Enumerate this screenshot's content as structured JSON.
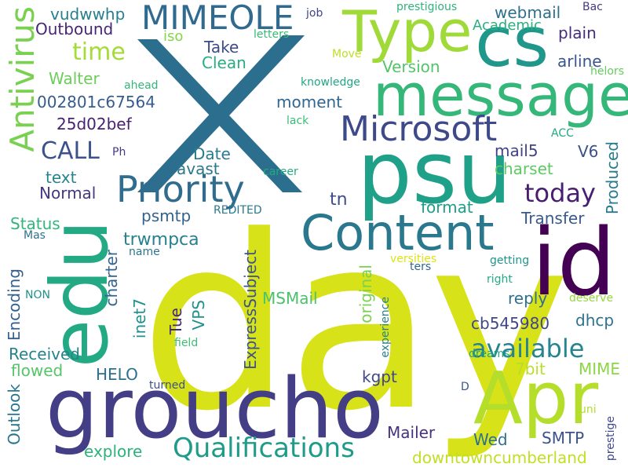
{
  "words": [
    {
      "text": "day",
      "color": "#d8e219"
    },
    {
      "text": "X",
      "color": "#2c6e8e"
    },
    {
      "text": "psu",
      "color": "#1fa088"
    },
    {
      "text": "id",
      "color": "#440154"
    },
    {
      "text": "groucho",
      "color": "#433e85"
    },
    {
      "text": "Apr",
      "color": "#b5de2b"
    },
    {
      "text": "edu",
      "color": "#23a983"
    },
    {
      "text": "cs",
      "color": "#1f988b"
    },
    {
      "text": "message",
      "color": "#35b779"
    },
    {
      "text": "Content",
      "color": "#2a788e"
    },
    {
      "text": "Type",
      "color": "#a0da39"
    },
    {
      "text": "MIMEOLE",
      "color": "#306a8e"
    },
    {
      "text": "Microsoft",
      "color": "#3e4989"
    },
    {
      "text": "Priority",
      "color": "#2f6c8e"
    },
    {
      "text": "Antivirus",
      "color": "#7ad151"
    },
    {
      "text": "Qualifications",
      "color": "#1e9c89"
    },
    {
      "text": "today",
      "color": "#481f70"
    },
    {
      "text": "available",
      "color": "#25848e"
    },
    {
      "text": "CALL",
      "color": "#3b528b"
    },
    {
      "text": "time",
      "color": "#a5db36"
    },
    {
      "text": "Type_small",
      "color": "#a0da39"
    },
    {
      "text": "vudwwhp",
      "color": "#277f8e"
    },
    {
      "text": "Outbound",
      "color": "#482575"
    },
    {
      "text": "webmail",
      "color": "#2d708e"
    },
    {
      "text": "plain",
      "color": "#472c7a"
    },
    {
      "text": "arline",
      "color": "#39568c"
    },
    {
      "text": "Version",
      "color": "#52c569"
    },
    {
      "text": "Walter",
      "color": "#6ccd5a"
    },
    {
      "text": "002801c67564",
      "color": "#365c8d"
    },
    {
      "text": "moment",
      "color": "#31668e"
    },
    {
      "text": "25d02bef",
      "color": "#482173"
    },
    {
      "text": "Take",
      "color": "#3e4a89"
    },
    {
      "text": "Clean",
      "color": "#27ad81"
    },
    {
      "text": "iso",
      "color": "#86d549"
    },
    {
      "text": "Academic",
      "color": "#2ab07f"
    },
    {
      "text": "prestigious",
      "color": "#2eb37c"
    },
    {
      "text": "job",
      "color": "#404688"
    },
    {
      "text": "Bac",
      "color": "#443983"
    },
    {
      "text": "letters",
      "color": "#3aba76"
    },
    {
      "text": "Move",
      "color": "#bddf26"
    },
    {
      "text": "helors",
      "color": "#65cb5e"
    },
    {
      "text": "knowledge",
      "color": "#22a785"
    },
    {
      "text": "ahead",
      "color": "#32b67a"
    },
    {
      "text": "lack",
      "color": "#3bbb75"
    },
    {
      "text": "ACC",
      "color": "#22a884"
    },
    {
      "text": "Ph",
      "color": "#443a83"
    },
    {
      "text": "mail5",
      "color": "#414287"
    },
    {
      "text": "V6",
      "color": "#3b518b"
    },
    {
      "text": "Produced",
      "color": "#297b8e"
    },
    {
      "text": "charset",
      "color": "#5ec962"
    },
    {
      "text": "Date",
      "color": "#287c8e"
    },
    {
      "text": "avast",
      "color": "#2a788e"
    },
    {
      "text": "text",
      "color": "#25848e"
    },
    {
      "text": "Normal",
      "color": "#453882"
    },
    {
      "text": "career",
      "color": "#24aa83"
    },
    {
      "text": "tn",
      "color": "#3e4c8a"
    },
    {
      "text": "format",
      "color": "#1f9e89"
    },
    {
      "text": "Transfer",
      "color": "#38598c"
    },
    {
      "text": "Status",
      "color": "#31b57b"
    },
    {
      "text": "psmtp",
      "color": "#33638d"
    },
    {
      "text": "trwmpca",
      "color": "#27808e"
    },
    {
      "text": "REDITED",
      "color": "#2a788e"
    },
    {
      "text": "Mas",
      "color": "#2d718e"
    },
    {
      "text": "name",
      "color": "#2b758e"
    },
    {
      "text": "versities",
      "color": "#dde318"
    },
    {
      "text": "getting",
      "color": "#1f948c"
    },
    {
      "text": "ters",
      "color": "#31668e"
    },
    {
      "text": "right",
      "color": "#24aa83"
    },
    {
      "text": "NON",
      "color": "#21918c"
    },
    {
      "text": "deserve",
      "color": "#95d840"
    },
    {
      "text": "reply",
      "color": "#2e6f8e"
    },
    {
      "text": "dhcp",
      "color": "#2c738e"
    },
    {
      "text": "cb545980",
      "color": "#3f4788"
    },
    {
      "text": "MSMail",
      "color": "#4ac16d"
    },
    {
      "text": "Encoding",
      "color": "#355f8d"
    },
    {
      "text": "charter",
      "color": "#33638d"
    },
    {
      "text": "inet7",
      "color": "#20928c"
    },
    {
      "text": "VPS",
      "color": "#21918c"
    },
    {
      "text": "Tue",
      "color": "#482878"
    },
    {
      "text": "ExpressSubject",
      "color": "#3a538b"
    },
    {
      "text": "original",
      "color": "#7ad151"
    },
    {
      "text": "experience",
      "color": "#26818e"
    },
    {
      "text": "Received",
      "color": "#26828e"
    },
    {
      "text": "flowed",
      "color": "#54c568"
    },
    {
      "text": "field",
      "color": "#3dbc74"
    },
    {
      "text": "dreams",
      "color": "#21a585"
    },
    {
      "text": "7bit",
      "color": "#b8de29"
    },
    {
      "text": "MIME",
      "color": "#8bd646"
    },
    {
      "text": "HELO",
      "color": "#2d708e"
    },
    {
      "text": "kgpt",
      "color": "#3f4889"
    },
    {
      "text": "Outlook",
      "color": "#2a768e"
    },
    {
      "text": "turned",
      "color": "#3b518b"
    },
    {
      "text": "Mailer",
      "color": "#46327e"
    },
    {
      "text": "Wed",
      "color": "#2d708e"
    },
    {
      "text": "D",
      "color": "#39558c"
    },
    {
      "text": "prestige",
      "color": "#3f4889"
    },
    {
      "text": "SMTP",
      "color": "#3b528b"
    },
    {
      "text": "uni",
      "color": "#b0dd2f"
    },
    {
      "text": "explore",
      "color": "#2db27d"
    },
    {
      "text": "downtowncumberland",
      "color": "#c2df23"
    }
  ]
}
